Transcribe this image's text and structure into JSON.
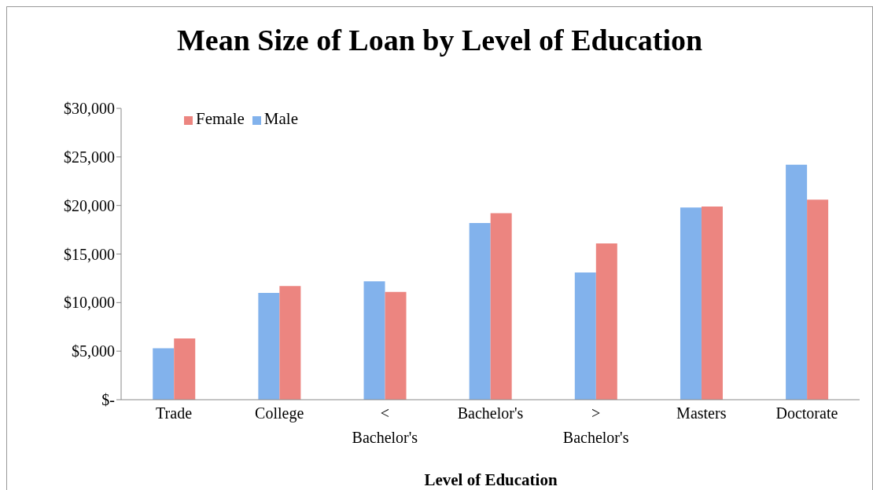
{
  "chart_data": {
    "type": "bar",
    "title": "Mean Size of Loan by Level of Education",
    "xlabel": "Level of Education",
    "categories": [
      "Trade",
      "College",
      "< Bachelor's",
      "Bachelor's",
      "> Bachelor's",
      "Masters",
      "Doctorate"
    ],
    "series": [
      {
        "name": "Male",
        "color": "#82b2ec",
        "values": [
          5300,
          11000,
          12200,
          18200,
          13100,
          19800,
          24200
        ]
      },
      {
        "name": "Female",
        "color": "#ec8580",
        "values": [
          6300,
          11700,
          11100,
          19200,
          16100,
          19900,
          20600
        ]
      }
    ],
    "ylim": [
      0,
      30000
    ],
    "yticks": [
      {
        "value": 0,
        "label": "$-"
      },
      {
        "value": 5000,
        "label": "$5,000"
      },
      {
        "value": 10000,
        "label": "$10,000"
      },
      {
        "value": 15000,
        "label": "$15,000"
      },
      {
        "value": 20000,
        "label": "$20,000"
      },
      {
        "value": 25000,
        "label": "$25,000"
      },
      {
        "value": 30000,
        "label": "$30,000"
      }
    ],
    "grid": false,
    "legend": "top left"
  }
}
